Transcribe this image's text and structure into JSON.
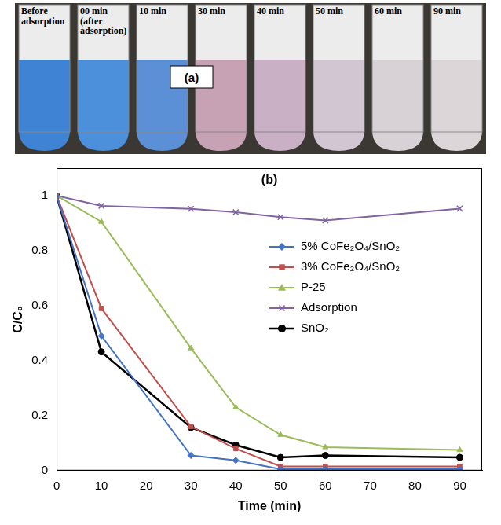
{
  "panel_a": {
    "label": "(a)",
    "tubes": [
      {
        "label": "Before adsorption",
        "color": "#3f84d4"
      },
      {
        "label": "00 min (after adsorption)",
        "color": "#4c8fdb"
      },
      {
        "label": "10 min",
        "color": "#5b8fd6"
      },
      {
        "label": "30 min",
        "color": "#c7a2b4"
      },
      {
        "label": "40 min",
        "color": "#c9b0c4"
      },
      {
        "label": "50 min",
        "color": "#d2c6d2"
      },
      {
        "label": "60 min",
        "color": "#d8d2d6"
      },
      {
        "label": "90 min",
        "color": "#dcd6d8"
      }
    ]
  },
  "chart_data": {
    "type": "line",
    "title": "(b)",
    "x_label": "Time (min)",
    "y_label": "C/C₀",
    "x": [
      0,
      10,
      30,
      40,
      50,
      60,
      90
    ],
    "series": [
      {
        "name": "5% CoFe₂O₄/SnO₂",
        "color": "#4472c4",
        "marker": "diamond",
        "values": [
          1,
          0.49,
          0.055,
          0.037,
          0.005,
          0.005,
          0.005
        ]
      },
      {
        "name": "3% CoFe₂O₄/SnO₂",
        "color": "#c0504d",
        "marker": "square",
        "values": [
          1,
          0.59,
          0.16,
          0.08,
          0.015,
          0.015,
          0.015
        ]
      },
      {
        "name": "P-25",
        "color": "#9bbb59",
        "marker": "triangle",
        "values": [
          1,
          0.905,
          0.445,
          0.23,
          0.13,
          0.085,
          0.075
        ]
      },
      {
        "name": "Adsorption",
        "color": "#8064a2",
        "marker": "x",
        "values": [
          1,
          0.963,
          0.952,
          0.94,
          0.922,
          0.91,
          0.953
        ]
      },
      {
        "name": "SnO₂",
        "color": "#000000",
        "marker": "circle",
        "values": [
          1,
          0.432,
          0.157,
          0.093,
          0.048,
          0.055,
          0.048
        ]
      }
    ],
    "xlim": [
      0,
      95
    ],
    "xticks": [
      0,
      10,
      20,
      30,
      40,
      50,
      60,
      70,
      80,
      90
    ],
    "ylim": [
      0,
      1.1
    ],
    "yticks": [
      0,
      0.2,
      0.4,
      0.6,
      0.8,
      1
    ],
    "grid": false,
    "legend": "right"
  }
}
